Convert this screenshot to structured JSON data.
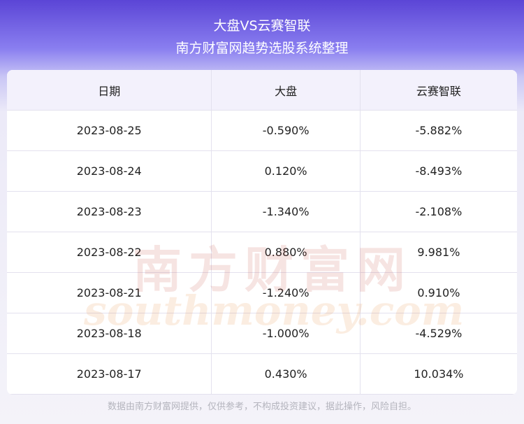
{
  "header": {
    "title": "大盘VS云赛智联",
    "subtitle": "南方财富网趋势选股系统整理"
  },
  "table": {
    "columns": [
      "日期",
      "大盘",
      "云赛智联"
    ],
    "rows": [
      [
        "2023-08-25",
        "-0.590%",
        "-5.882%"
      ],
      [
        "2023-08-24",
        "0.120%",
        "-8.493%"
      ],
      [
        "2023-08-23",
        "-1.340%",
        "-2.108%"
      ],
      [
        "2023-08-22",
        "0.880%",
        "9.981%"
      ],
      [
        "2023-08-21",
        "-1.240%",
        "0.910%"
      ],
      [
        "2023-08-18",
        "-1.000%",
        "-4.529%"
      ],
      [
        "2023-08-17",
        "0.430%",
        "10.034%"
      ]
    ]
  },
  "watermark": {
    "cn": "南方财富网",
    "en": "southmoney.com"
  },
  "footer": {
    "note": "数据由南方财富网提供，仅供参考，不构成投资建议，据此操作，风险自担。"
  }
}
